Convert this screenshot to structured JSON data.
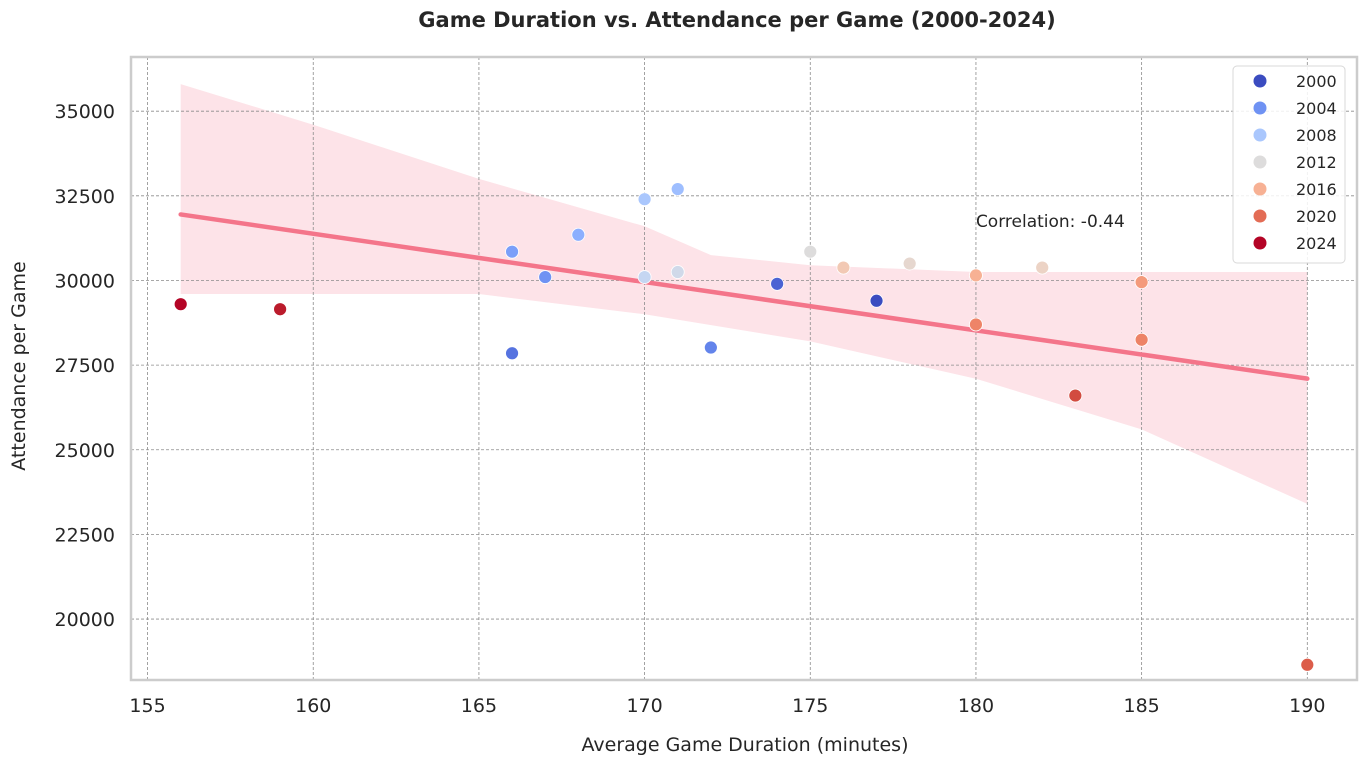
{
  "chart_data": {
    "type": "scatter",
    "title": "Game Duration vs. Attendance per Game (2000-2024)",
    "xlabel": "Average Game Duration (minutes)",
    "ylabel": "Attendance per Game",
    "xlim": [
      154.5,
      191.5
    ],
    "ylim": [
      18200,
      36600
    ],
    "xticks": [
      155,
      160,
      165,
      170,
      175,
      180,
      185,
      190
    ],
    "yticks": [
      20000,
      22500,
      25000,
      27500,
      30000,
      32500,
      35000
    ],
    "grid": true,
    "legend": {
      "placement": "top-right",
      "entries": [
        {
          "label": "2000",
          "color": "#3b4cc0"
        },
        {
          "label": "2004",
          "color": "#6f92f3"
        },
        {
          "label": "2008",
          "color": "#aac7fd"
        },
        {
          "label": "2012",
          "color": "#dddcdc"
        },
        {
          "label": "2016",
          "color": "#f7b194"
        },
        {
          "label": "2020",
          "color": "#e36c55"
        },
        {
          "label": "2024",
          "color": "#b40426"
        }
      ]
    },
    "points": [
      {
        "x": 156,
        "y": 29300,
        "year": 2024,
        "color": "#b40426"
      },
      {
        "x": 159,
        "y": 29150,
        "year": 2023,
        "color": "#bb1b2c"
      },
      {
        "x": 166,
        "y": 27850,
        "year": 2002,
        "color": "#5673e0"
      },
      {
        "x": 166,
        "y": 30850,
        "year": 2005,
        "color": "#7b9ff9"
      },
      {
        "x": 167,
        "y": 30100,
        "year": 2004,
        "color": "#6f92f3"
      },
      {
        "x": 168,
        "y": 31350,
        "year": 2006,
        "color": "#8caffe"
      },
      {
        "x": 170,
        "y": 32400,
        "year": 2008,
        "color": "#aac7fd"
      },
      {
        "x": 170,
        "y": 30100,
        "year": 2010,
        "color": "#c5d6f2"
      },
      {
        "x": 171,
        "y": 32700,
        "year": 2007,
        "color": "#9ebeff"
      },
      {
        "x": 171,
        "y": 30250,
        "year": 2011,
        "color": "#d0d9e9"
      },
      {
        "x": 172,
        "y": 28020,
        "year": 2003,
        "color": "#6384eb"
      },
      {
        "x": 174,
        "y": 29900,
        "year": 2001,
        "color": "#4a63d3"
      },
      {
        "x": 175,
        "y": 30850,
        "year": 2012,
        "color": "#dddcdc"
      },
      {
        "x": 176,
        "y": 30380,
        "year": 2015,
        "color": "#f2c9b4"
      },
      {
        "x": 177,
        "y": 29400,
        "year": 2000,
        "color": "#3b4cc0"
      },
      {
        "x": 178,
        "y": 30500,
        "year": 2013,
        "color": "#e6d7cf"
      },
      {
        "x": 180,
        "y": 30150,
        "year": 2016,
        "color": "#f7b194"
      },
      {
        "x": 180,
        "y": 28700,
        "year": 2019,
        "color": "#ee8468"
      },
      {
        "x": 182,
        "y": 30380,
        "year": 2014,
        "color": "#ecd3c5"
      },
      {
        "x": 183,
        "y": 26600,
        "year": 2022,
        "color": "#d24b40"
      },
      {
        "x": 185,
        "y": 29950,
        "year": 2017,
        "color": "#f49a7b"
      },
      {
        "x": 185,
        "y": 28250,
        "year": 2018,
        "color": "#ed8366"
      },
      {
        "x": 190,
        "y": 18650,
        "year": 2021,
        "color": "#dc5d4a"
      }
    ],
    "regression": {
      "x": [
        156,
        190
      ],
      "y": [
        31950,
        27100
      ],
      "color": "#f4758a",
      "ci_upper": [
        [
          156,
          35800
        ],
        [
          160,
          34600
        ],
        [
          165,
          33000
        ],
        [
          170,
          31600
        ],
        [
          172,
          30750
        ],
        [
          175,
          30450
        ],
        [
          180,
          30250
        ],
        [
          185,
          30250
        ],
        [
          190,
          30250
        ]
      ],
      "ci_lower": [
        [
          156,
          29600
        ],
        [
          160,
          29600
        ],
        [
          165,
          29600
        ],
        [
          170,
          29000
        ],
        [
          175,
          28200
        ],
        [
          180,
          27100
        ],
        [
          185,
          25600
        ],
        [
          190,
          23400
        ]
      ],
      "ci_color": "#fde3e8"
    },
    "annotation": {
      "text": "Correlation: -0.44",
      "x": 180,
      "y": 31750
    }
  }
}
